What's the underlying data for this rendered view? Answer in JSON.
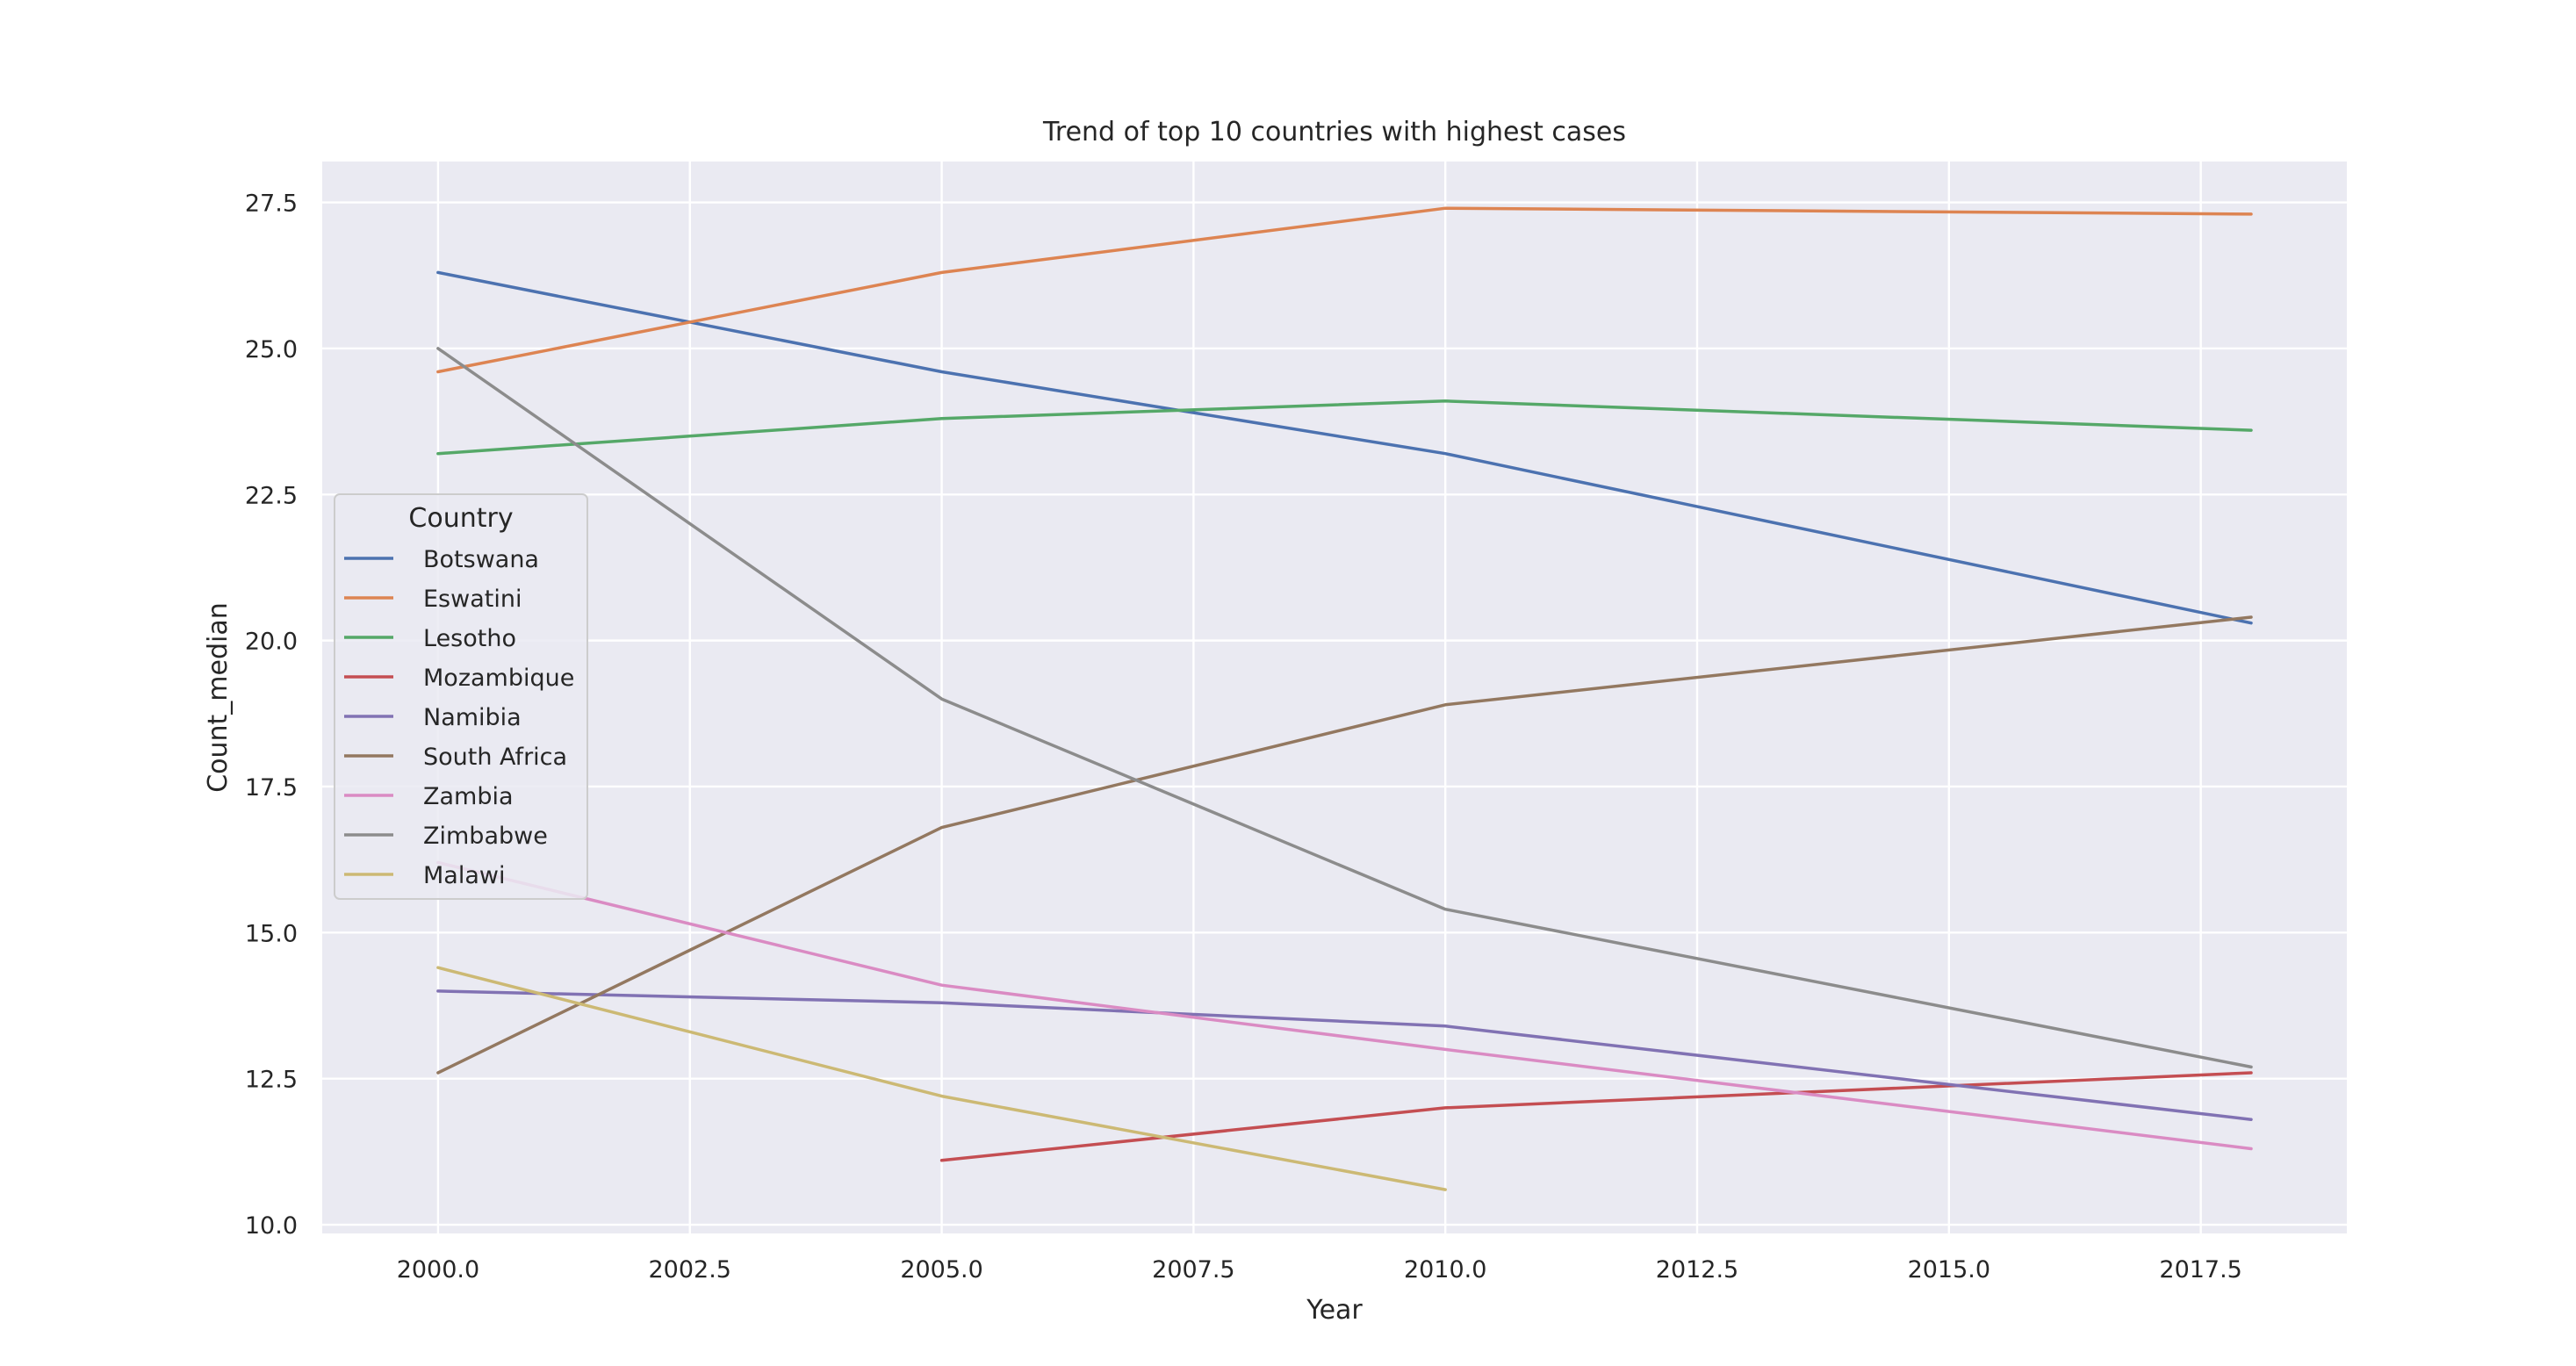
{
  "chart_data": {
    "type": "line",
    "title": "Trend of top 10 countries with highest cases",
    "xlabel": "Year",
    "ylabel": "Count_median",
    "xlim": [
      1998.85,
      2018.95
    ],
    "ylim": [
      9.85,
      28.2
    ],
    "xticks": [
      2000.0,
      2002.5,
      2005.0,
      2007.5,
      2010.0,
      2012.5,
      2015.0,
      2017.5
    ],
    "xtick_labels": [
      "2000.0",
      "2002.5",
      "2005.0",
      "2007.5",
      "2010.0",
      "2012.5",
      "2015.0",
      "2017.5"
    ],
    "yticks": [
      10.0,
      12.5,
      15.0,
      17.5,
      20.0,
      22.5,
      25.0,
      27.5
    ],
    "ytick_labels": [
      "10.0",
      "12.5",
      "15.0",
      "17.5",
      "20.0",
      "22.5",
      "25.0",
      "27.5"
    ],
    "grid": true,
    "legend": {
      "title": "Country",
      "placement": "center-left"
    },
    "series": [
      {
        "name": "Botswana",
        "color": "#4c72b0",
        "x": [
          2000,
          2005,
          2010,
          2018
        ],
        "y": [
          26.3,
          24.6,
          23.2,
          20.3
        ]
      },
      {
        "name": "Eswatini",
        "color": "#dd8452",
        "x": [
          2000,
          2005,
          2010,
          2018
        ],
        "y": [
          24.6,
          26.3,
          27.4,
          27.3
        ]
      },
      {
        "name": "Lesotho",
        "color": "#55a868",
        "x": [
          2000,
          2005,
          2010,
          2018
        ],
        "y": [
          23.2,
          23.8,
          24.1,
          23.6
        ]
      },
      {
        "name": "Mozambique",
        "color": "#c44e52",
        "x": [
          2005,
          2010,
          2018
        ],
        "y": [
          11.1,
          12.0,
          12.6
        ]
      },
      {
        "name": "Namibia",
        "color": "#8172b3",
        "x": [
          2000,
          2005,
          2010,
          2018
        ],
        "y": [
          14.0,
          13.8,
          13.4,
          11.8
        ]
      },
      {
        "name": "South Africa",
        "color": "#937860",
        "x": [
          2000,
          2005,
          2010,
          2018
        ],
        "y": [
          12.6,
          16.8,
          18.9,
          20.4
        ]
      },
      {
        "name": "Zambia",
        "color": "#da8bc3",
        "x": [
          2000,
          2005,
          2010,
          2018
        ],
        "y": [
          16.2,
          14.1,
          13.0,
          11.3
        ]
      },
      {
        "name": "Zimbabwe",
        "color": "#8c8c8c",
        "x": [
          2000,
          2005,
          2010,
          2018
        ],
        "y": [
          25.0,
          19.0,
          15.4,
          12.7
        ]
      },
      {
        "name": "Malawi",
        "color": "#ccb974",
        "x": [
          2000,
          2005,
          2010
        ],
        "y": [
          14.4,
          12.2,
          10.6
        ]
      }
    ]
  }
}
